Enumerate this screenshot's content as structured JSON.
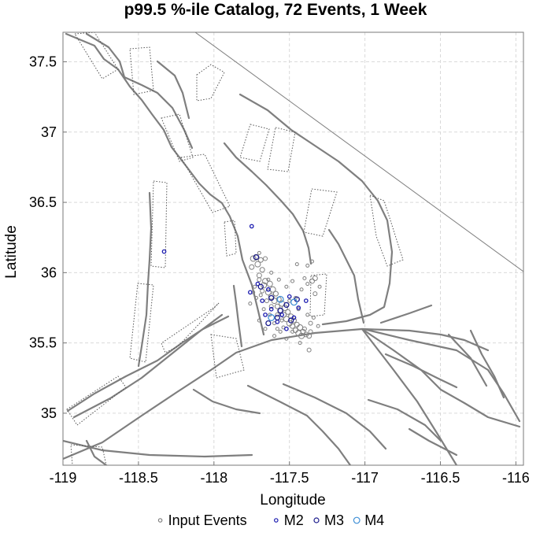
{
  "chart_data": {
    "type": "scatter",
    "title": "p99.5 %-ile Catalog, 72 Events, 1 Week",
    "xlabel": "Longitude",
    "ylabel": "Latitude",
    "xlim": [
      -119.0,
      -115.95
    ],
    "ylim": [
      34.63,
      37.71
    ],
    "xticks": [
      -119,
      -118.5,
      -118,
      -117.5,
      -117,
      -116.5,
      -116
    ],
    "xtick_labels": [
      "-119",
      "-118.5",
      "-118",
      "-117.5",
      "-117",
      "-116.5",
      "-116"
    ],
    "yticks": [
      35,
      35.5,
      36,
      36.5,
      37,
      37.5
    ],
    "ytick_labels": [
      "35",
      "35.5",
      "36",
      "36.5",
      "37",
      "37.5"
    ],
    "grid": true,
    "legend_position": "bottom",
    "colors": {
      "input_events": "#808080",
      "m2": "#1c1cb0",
      "m3": "#1c1c8c",
      "m4": "#3f8fd6",
      "faults": "#7f7f7f"
    },
    "series": [
      {
        "name": "Input Events",
        "marker": "open-circle",
        "points": [
          [
            -117.72,
            36.11
          ],
          [
            -117.74,
            36.1
          ],
          [
            -117.69,
            36.09
          ],
          [
            -117.71,
            36.06
          ],
          [
            -117.66,
            36.1
          ],
          [
            -117.75,
            36.04
          ],
          [
            -117.68,
            36.02
          ],
          [
            -117.7,
            35.98
          ],
          [
            -117.66,
            35.94
          ],
          [
            -117.63,
            35.92
          ],
          [
            -117.67,
            35.91
          ],
          [
            -117.61,
            35.88
          ],
          [
            -117.64,
            35.86
          ],
          [
            -117.59,
            35.85
          ],
          [
            -117.62,
            35.83
          ],
          [
            -117.57,
            35.81
          ],
          [
            -117.6,
            35.8
          ],
          [
            -117.55,
            35.78
          ],
          [
            -117.58,
            35.76
          ],
          [
            -117.53,
            35.75
          ],
          [
            -117.56,
            35.73
          ],
          [
            -117.51,
            35.72
          ],
          [
            -117.54,
            35.7
          ],
          [
            -117.49,
            35.69
          ],
          [
            -117.52,
            35.67
          ],
          [
            -117.47,
            35.66
          ],
          [
            -117.5,
            35.64
          ],
          [
            -117.45,
            35.63
          ],
          [
            -117.48,
            35.62
          ],
          [
            -117.43,
            35.61
          ],
          [
            -117.46,
            35.59
          ],
          [
            -117.41,
            35.58
          ],
          [
            -117.44,
            35.57
          ],
          [
            -117.39,
            35.56
          ],
          [
            -117.42,
            35.55
          ],
          [
            -117.37,
            35.55
          ],
          [
            -117.4,
            35.6
          ],
          [
            -117.36,
            35.58
          ],
          [
            -117.7,
            35.95
          ],
          [
            -117.68,
            35.87
          ],
          [
            -117.73,
            35.9
          ],
          [
            -117.65,
            35.8
          ],
          [
            -117.62,
            35.76
          ],
          [
            -117.58,
            35.7
          ],
          [
            -117.55,
            35.66
          ],
          [
            -117.6,
            35.64
          ],
          [
            -117.63,
            35.7
          ],
          [
            -117.67,
            35.74
          ],
          [
            -117.5,
            35.8
          ],
          [
            -117.46,
            35.82
          ],
          [
            -117.42,
            35.88
          ],
          [
            -117.38,
            35.92
          ],
          [
            -117.35,
            35.94
          ],
          [
            -117.33,
            35.96
          ],
          [
            -117.4,
            35.96
          ],
          [
            -117.44,
            35.74
          ],
          [
            -117.38,
            35.7
          ],
          [
            -117.34,
            35.68
          ],
          [
            -117.36,
            35.64
          ],
          [
            -117.31,
            35.62
          ],
          [
            -117.33,
            35.85
          ],
          [
            -117.3,
            35.9
          ],
          [
            -117.72,
            35.82
          ],
          [
            -117.76,
            35.78
          ],
          [
            -117.7,
            35.66
          ],
          [
            -117.66,
            35.6
          ],
          [
            -117.56,
            35.58
          ],
          [
            -117.6,
            35.55
          ],
          [
            -117.52,
            35.53
          ],
          [
            -117.43,
            35.5
          ],
          [
            -117.37,
            35.45
          ],
          [
            -117.45,
            36.06
          ],
          [
            -117.38,
            36.05
          ],
          [
            -117.35,
            36.08
          ],
          [
            -117.7,
            36.14
          ],
          [
            -117.57,
            35.95
          ],
          [
            -117.52,
            35.9
          ],
          [
            -117.48,
            35.94
          ],
          [
            -117.62,
            36.0
          ],
          [
            -117.64,
            35.95
          ],
          [
            -117.69,
            35.84
          ],
          [
            -117.74,
            35.86
          ],
          [
            -117.54,
            35.61
          ],
          [
            -117.48,
            35.58
          ],
          [
            -117.58,
            35.6
          ]
        ],
        "sizes": [
          7,
          7,
          6,
          7,
          5,
          6,
          6,
          6,
          7,
          7,
          7,
          7,
          7,
          6,
          7,
          6,
          7,
          7,
          6,
          7,
          7,
          6,
          7,
          6,
          7,
          6,
          7,
          6,
          6,
          7,
          6,
          6,
          7,
          6,
          7,
          6,
          5,
          5,
          5,
          5,
          4,
          5,
          5,
          5,
          4,
          4,
          4,
          4,
          4,
          4,
          4,
          4,
          6,
          6,
          4,
          4,
          4,
          4,
          5,
          4,
          5,
          4,
          4,
          4,
          4,
          4,
          4,
          4,
          4,
          4,
          5,
          4,
          4,
          4,
          4,
          4,
          4,
          4,
          4,
          4,
          4,
          4,
          4,
          4,
          4
        ]
      },
      {
        "name": "M2",
        "marker": "open-circle",
        "points": [
          [
            -117.75,
            36.33
          ],
          [
            -118.33,
            36.15
          ],
          [
            -117.76,
            35.86
          ],
          [
            -117.68,
            35.8
          ],
          [
            -117.62,
            35.74
          ],
          [
            -117.55,
            35.7
          ],
          [
            -117.5,
            35.83
          ],
          [
            -117.44,
            35.75
          ],
          [
            -117.71,
            35.92
          ],
          [
            -117.58,
            35.65
          ],
          [
            -117.52,
            35.6
          ],
          [
            -117.64,
            35.88
          ],
          [
            -117.47,
            35.68
          ],
          [
            -117.39,
            35.8
          ],
          [
            -117.66,
            35.7
          ]
        ]
      },
      {
        "name": "M3",
        "marker": "open-circle",
        "points": [
          [
            -117.72,
            36.11
          ],
          [
            -117.69,
            35.9
          ],
          [
            -117.62,
            35.82
          ],
          [
            -117.56,
            35.73
          ],
          [
            -117.49,
            35.66
          ],
          [
            -117.45,
            35.81
          ],
          [
            -117.52,
            35.77
          ],
          [
            -117.64,
            35.64
          ],
          [
            -117.58,
            35.68
          ]
        ]
      },
      {
        "name": "M4",
        "marker": "open-circle",
        "points": [
          [
            -117.47,
            35.79
          ],
          [
            -117.56,
            35.81
          ],
          [
            -117.62,
            35.68
          ]
        ]
      }
    ]
  }
}
